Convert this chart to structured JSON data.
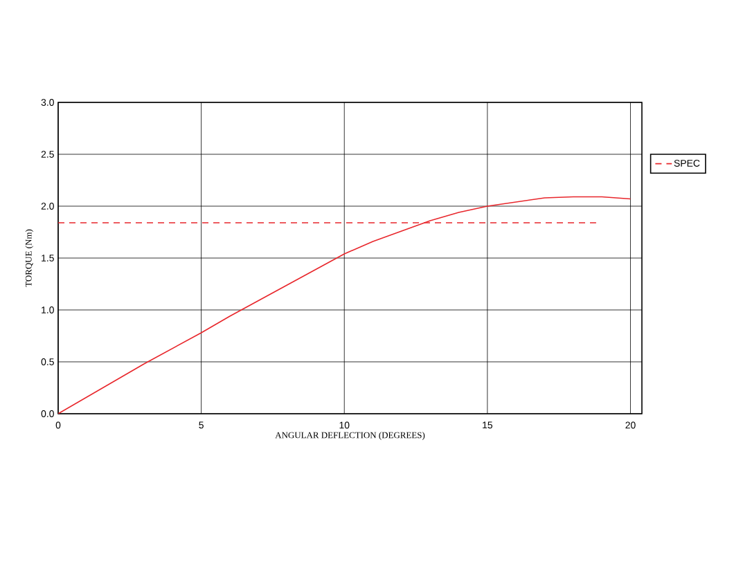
{
  "chart_data": {
    "type": "line",
    "xlabel": "ANGULAR DEFLECTION (DEGREES)",
    "ylabel": "TORQUE (Nm)",
    "xlim": [
      0,
      20.4
    ],
    "ylim": [
      0,
      3
    ],
    "xticks": [
      0,
      5,
      10,
      15,
      20
    ],
    "yticks": [
      {
        "value": 0,
        "label": "0.0"
      },
      {
        "value": 0.5,
        "label": "0.5"
      },
      {
        "value": 1,
        "label": "1.0"
      },
      {
        "value": 1.5,
        "label": "1.5"
      },
      {
        "value": 2,
        "label": "2.0"
      },
      {
        "value": 2.5,
        "label": "2.5"
      },
      {
        "value": 3,
        "label": "3.0"
      }
    ],
    "grid": true,
    "legend": "right",
    "series": [
      {
        "color": "#e8262b",
        "line_style": "solid",
        "x": [
          0,
          1,
          2,
          3,
          4,
          5,
          6,
          7,
          8,
          9,
          10,
          11,
          12,
          12.5,
          13,
          14,
          15,
          16,
          17,
          18,
          19,
          20
        ],
        "values": [
          0,
          0.16,
          0.32,
          0.48,
          0.63,
          0.78,
          0.94,
          1.09,
          1.24,
          1.39,
          1.54,
          1.66,
          1.76,
          1.81,
          1.86,
          1.94,
          2.0,
          2.04,
          2.08,
          2.09,
          2.09,
          2.07
        ]
      },
      {
        "name": "SPEC",
        "color": "#e8262b",
        "line_style": "dashed",
        "x": [
          0,
          18.8
        ],
        "values": [
          1.84,
          1.84
        ]
      }
    ]
  }
}
